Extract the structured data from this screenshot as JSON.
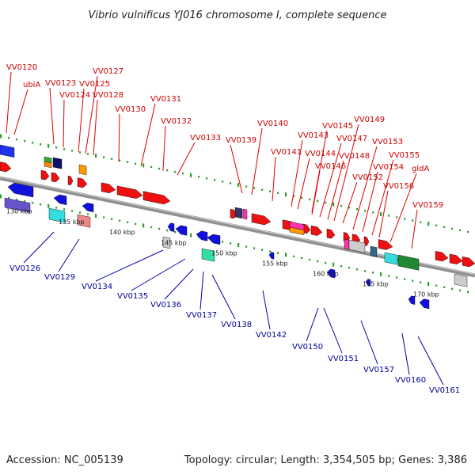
{
  "title": "Vibrio vulnificus YJ016 chromosome I, complete sequence",
  "footer": {
    "accession": "Accession: NC_005139",
    "summary": "Topology: circular; Length: 3,354,505 bp; Genes: 3,386"
  },
  "colors": {
    "backbone": "#909090",
    "forward_strand": "#ee1111",
    "reverse_strand": "#1111dd",
    "forward_label": "#cc0000",
    "reverse_label": "#000099",
    "scale_dot": "#2f9e2f"
  },
  "ruler_labels": [
    "130 kbp",
    "135 kbp",
    "140 kbp",
    "145 kbp",
    "150 kbp",
    "155 kbp",
    "160 kbp",
    "165 kbp",
    "170 kbp"
  ],
  "forward_gene_labels": [
    "VV0120",
    "ubiA",
    "VV0123",
    "VV0124",
    "VV0125",
    "VV0127",
    "VV0128",
    "VV0130",
    "VV0131",
    "VV0132",
    "VV0133",
    "VV0139",
    "VV0140",
    "VV0141",
    "VV0143",
    "VV0144",
    "VV0145",
    "VV0146",
    "VV0147",
    "VV0148",
    "VV0149",
    "VV0152",
    "VV0153",
    "VV0154",
    "VV0155",
    "VV0156",
    "gldA",
    "VV0159"
  ],
  "reverse_gene_labels": [
    "VV0126",
    "VV0129",
    "VV0134",
    "VV0135",
    "VV0136",
    "VV0137",
    "VV0138",
    "VV0142",
    "VV0150",
    "VV0151",
    "VV0157",
    "VV0160",
    "VV0161"
  ]
}
